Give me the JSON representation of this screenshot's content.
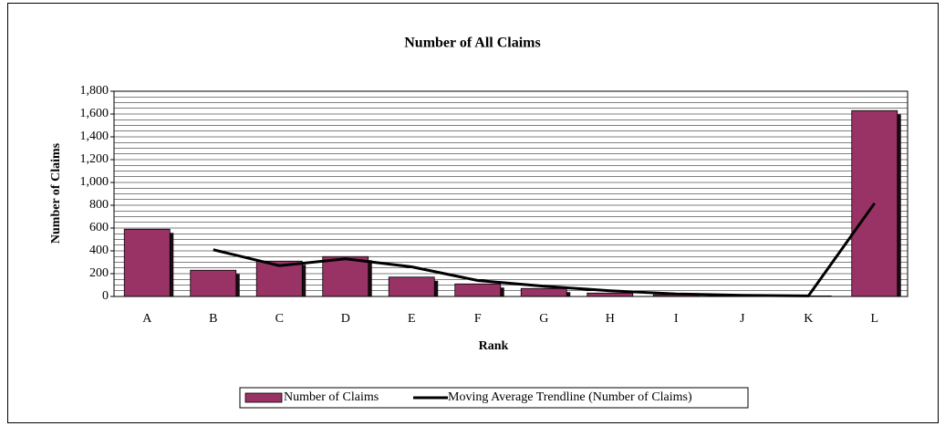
{
  "chart_data": {
    "type": "bar",
    "title": "Number of All Claims",
    "x_label": "Rank",
    "y_label": "Number of Claims",
    "categories": [
      "A",
      "B",
      "C",
      "D",
      "E",
      "F",
      "G",
      "H",
      "I",
      "J",
      "K",
      "L"
    ],
    "series": [
      {
        "name": "Number of Claims",
        "type": "bar",
        "color": "#993366",
        "values": [
          590,
          230,
          310,
          350,
          170,
          110,
          70,
          30,
          15,
          5,
          5,
          1630
        ]
      },
      {
        "name": "Moving Average Trendline (Number of Claims)",
        "type": "line",
        "color": "#000000",
        "values": [
          null,
          410,
          270,
          330,
          260,
          140,
          90,
          50,
          22.5,
          10,
          5,
          817.5
        ]
      }
    ],
    "ylim": [
      0,
      1800
    ],
    "yticks": [
      0,
      200,
      400,
      600,
      800,
      {
        "value": 1000,
        "label": "1,000"
      },
      {
        "value": 1200,
        "label": "1,200"
      },
      {
        "value": 1400,
        "label": "1,400"
      },
      {
        "value": 1600,
        "label": "1,600"
      },
      {
        "value": 1800,
        "label": "1,800"
      }
    ],
    "minor_yticks": [
      50,
      100,
      150,
      250,
      300,
      350,
      450,
      500,
      550,
      650,
      700,
      750,
      850,
      900,
      950,
      1050,
      1100,
      1150,
      1250,
      1300,
      1350,
      1450,
      1500,
      1550,
      1650,
      1700,
      1750
    ],
    "grid": true,
    "legend": "bottom"
  }
}
